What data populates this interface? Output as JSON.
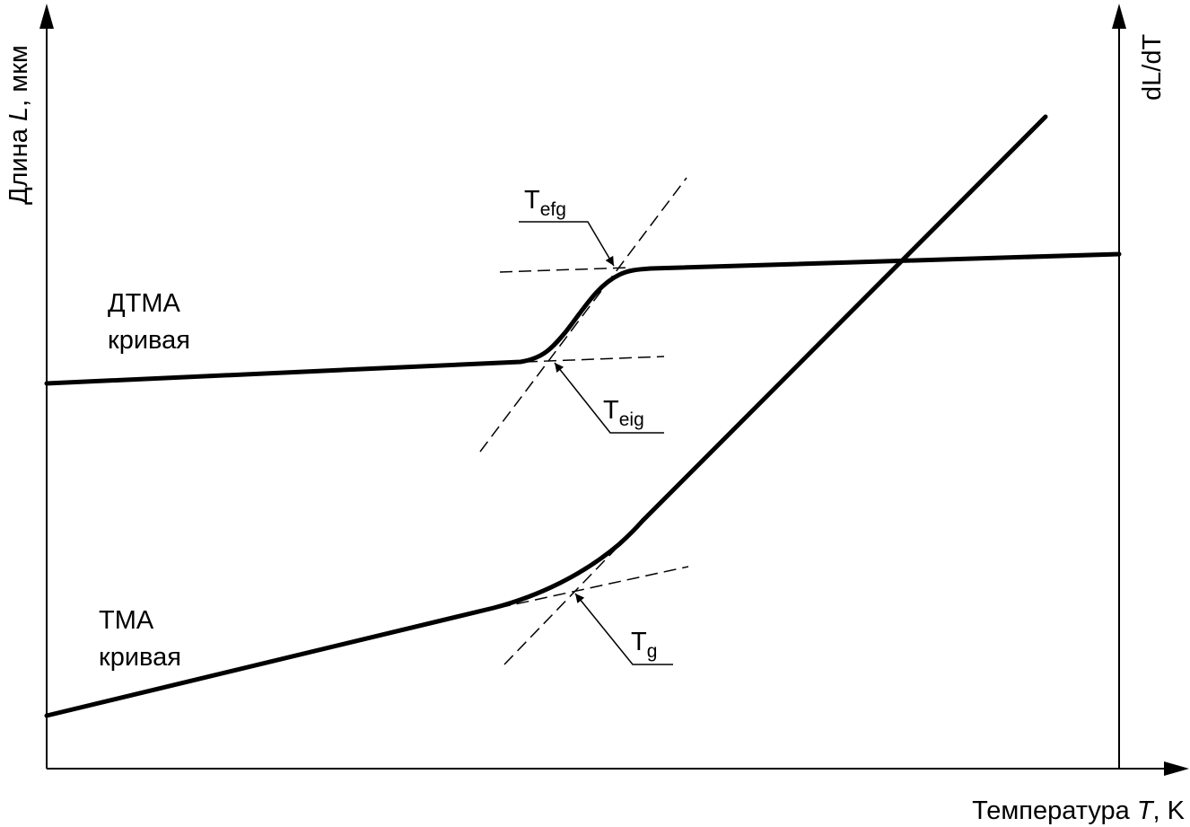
{
  "axes": {
    "y_left_label_prefix": "Длина ",
    "y_left_label_var": "L",
    "y_left_label_suffix": ", мкм",
    "y_right_label": "dL/dT",
    "x_label_prefix": "Температура ",
    "x_label_var": "T",
    "x_label_suffix": ", K"
  },
  "curves": {
    "dtma_line1": "ДТМА",
    "dtma_line2": "кривая",
    "tma_line1": "ТМА",
    "tma_line2": "кривая"
  },
  "annotations": {
    "tefg_main": "T",
    "tefg_sub": "efg",
    "teig_main": "T",
    "teig_sub": "eig",
    "tg_main": "T",
    "tg_sub": "g"
  }
}
